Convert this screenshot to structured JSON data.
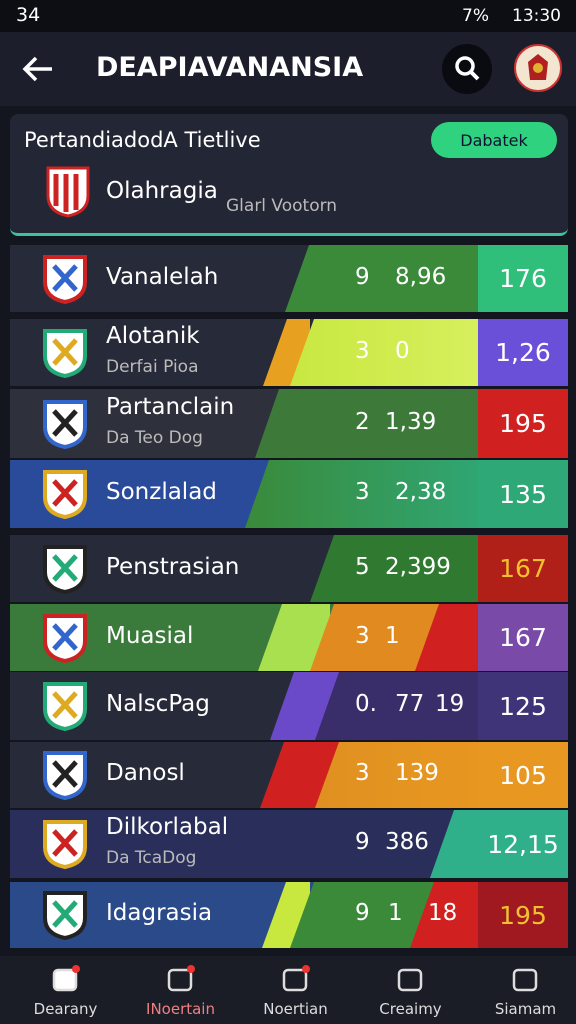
{
  "status": {
    "left": "34",
    "battery": "7%",
    "time": "13:30"
  },
  "header": {
    "title": "DEAPIAVANANSIA"
  },
  "section": {
    "title": "PertandiadodA Tietlive",
    "button": "Dabatek"
  },
  "featured": {
    "name": "Olahragia",
    "meta": "Glarl Vootorn"
  },
  "rows": [
    {
      "name": "Vanalelah",
      "stats": [
        "9",
        "8,96"
      ],
      "score": "176"
    },
    {
      "name": "Alotanik",
      "sub": "Derfai Pioa",
      "stats": [
        "3",
        "0"
      ],
      "score": "1,26"
    },
    {
      "name": "Partanclain",
      "sub": "Da Teo Dog",
      "stats": [
        "2",
        "1,39"
      ],
      "score": "195"
    },
    {
      "name": "Sonzlalad",
      "stats": [
        "3",
        "2,38"
      ],
      "score": "135"
    },
    {
      "name": "Penstrasian",
      "stats": [
        "5",
        "2,399"
      ],
      "score": "167"
    },
    {
      "name": "Muasial",
      "stats": [
        "3",
        "1"
      ],
      "score": "167"
    },
    {
      "name": "NalscPag",
      "stats": [
        "0.",
        "77",
        "19"
      ],
      "score": "125"
    },
    {
      "name": "Danosl",
      "stats": [
        "3",
        "139"
      ],
      "score": "105"
    },
    {
      "name": "Dilkorlabal",
      "sub": "Da TcaDog",
      "stats": [
        "9",
        "386"
      ],
      "score": "12,15"
    },
    {
      "name": "Idagrasia",
      "stats": [
        "9",
        "1",
        "18"
      ],
      "score": "195"
    }
  ],
  "nav": [
    "Dearany",
    "INoertain",
    "Noertian",
    "Creaimy",
    "Siamam"
  ]
}
